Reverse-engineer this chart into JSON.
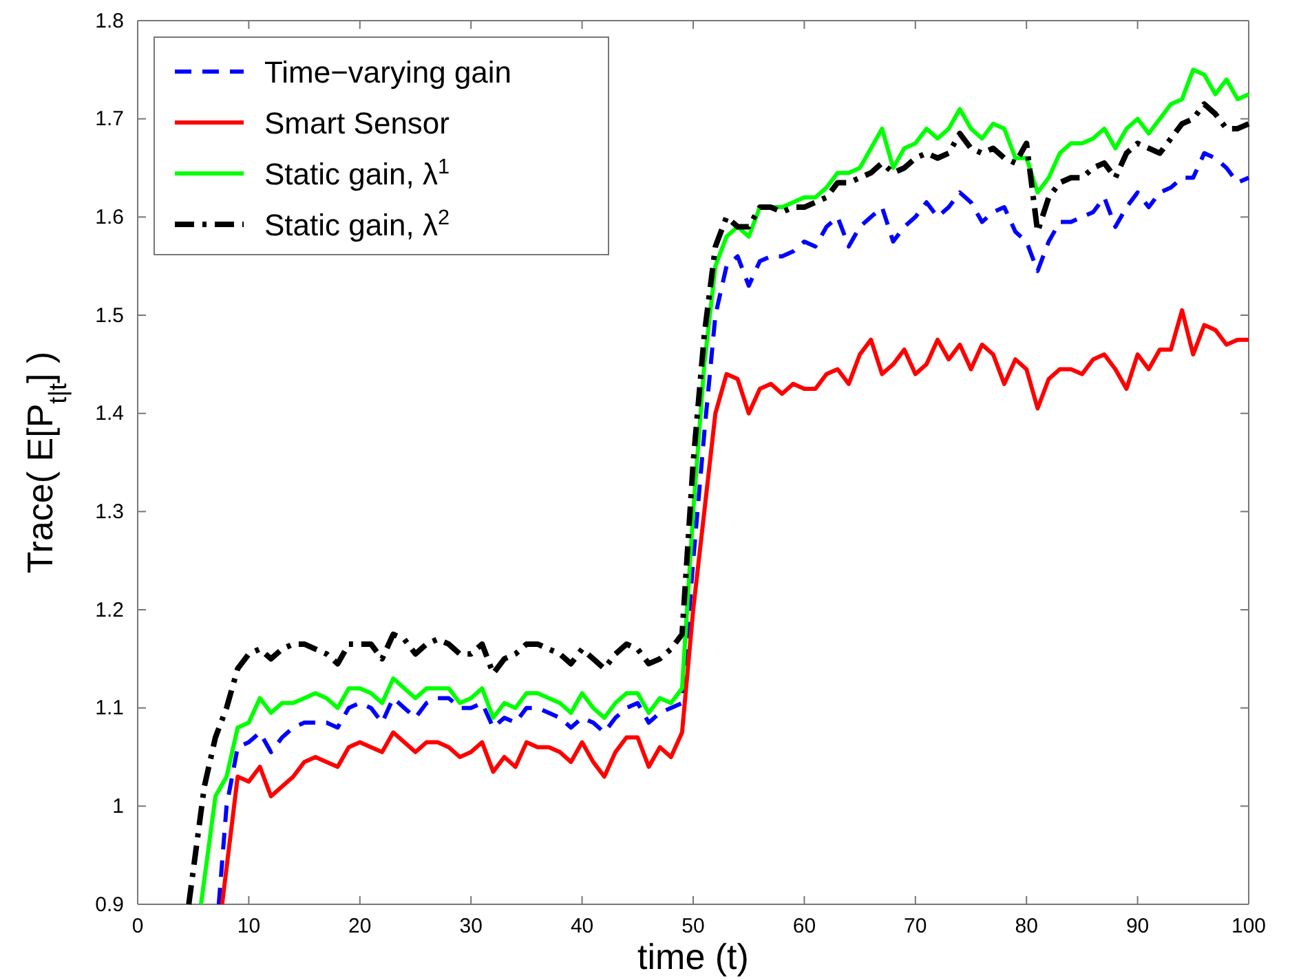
{
  "chart_data": {
    "type": "line",
    "xlabel": "time (t)",
    "ylabel": "Trace( E[P$_{t|t}$] )",
    "xlim": [
      0,
      100
    ],
    "xticks": [
      0,
      10,
      20,
      30,
      40,
      50,
      60,
      70,
      80,
      90,
      100
    ],
    "ylim": [
      0.9,
      1.8
    ],
    "yticks": [
      0.9,
      1,
      1.1,
      1.2,
      1.3,
      1.4,
      1.5,
      1.6,
      1.7,
      1.8
    ],
    "legend": "top left",
    "grid": false,
    "series": [
      {
        "name": "Time−varying gain",
        "color": "#0000ff",
        "line_style": "dashed",
        "x": [
          7.3,
          8,
          9,
          10,
          11,
          12,
          13,
          14,
          15,
          16,
          17,
          18,
          19,
          20,
          21,
          22,
          23,
          24,
          25,
          26,
          27,
          28,
          29,
          30,
          31,
          32,
          33,
          34,
          35,
          36,
          37,
          38,
          39,
          40,
          41,
          42,
          43,
          44,
          45,
          46,
          47,
          48,
          49,
          50,
          51,
          52,
          53,
          54,
          55,
          56,
          57,
          58,
          59,
          60,
          61,
          62,
          63,
          64,
          65,
          66,
          67,
          68,
          69,
          70,
          71,
          72,
          73,
          74,
          75,
          76,
          77,
          78,
          79,
          80,
          81,
          82,
          83,
          84,
          85,
          86,
          87,
          88,
          89,
          90,
          91,
          92,
          93,
          94,
          95,
          96,
          97,
          98,
          99,
          100
        ],
        "values": [
          0.9,
          1.0,
          1.06,
          1.065,
          1.075,
          1.055,
          1.07,
          1.08,
          1.085,
          1.085,
          1.085,
          1.08,
          1.1,
          1.105,
          1.1,
          1.085,
          1.11,
          1.1,
          1.09,
          1.105,
          1.11,
          1.11,
          1.1,
          1.1,
          1.105,
          1.08,
          1.09,
          1.085,
          1.1,
          1.1,
          1.095,
          1.09,
          1.08,
          1.09,
          1.085,
          1.075,
          1.09,
          1.1,
          1.105,
          1.085,
          1.095,
          1.1,
          1.105,
          1.25,
          1.38,
          1.5,
          1.55,
          1.56,
          1.53,
          1.555,
          1.56,
          1.56,
          1.565,
          1.575,
          1.57,
          1.59,
          1.6,
          1.57,
          1.59,
          1.6,
          1.61,
          1.575,
          1.59,
          1.6,
          1.615,
          1.6,
          1.61,
          1.625,
          1.615,
          1.595,
          1.605,
          1.61,
          1.585,
          1.575,
          1.545,
          1.575,
          1.595,
          1.595,
          1.6,
          1.605,
          1.62,
          1.59,
          1.61,
          1.625,
          1.61,
          1.625,
          1.63,
          1.64,
          1.64,
          1.665,
          1.66,
          1.65,
          1.635,
          1.64
        ]
      },
      {
        "name": "Smart Sensor",
        "color": "#ff0000",
        "line_style": "solid",
        "x": [
          7.6,
          9,
          10,
          11,
          12,
          13,
          14,
          15,
          16,
          17,
          18,
          19,
          20,
          21,
          22,
          23,
          24,
          25,
          26,
          27,
          28,
          29,
          30,
          31,
          32,
          33,
          34,
          35,
          36,
          37,
          38,
          39,
          40,
          41,
          42,
          43,
          44,
          45,
          46,
          47,
          48,
          49,
          50,
          51,
          52,
          53,
          54,
          55,
          56,
          57,
          58,
          59,
          60,
          61,
          62,
          63,
          64,
          65,
          66,
          67,
          68,
          69,
          70,
          71,
          72,
          73,
          74,
          75,
          76,
          77,
          78,
          79,
          80,
          81,
          82,
          83,
          84,
          85,
          86,
          87,
          88,
          89,
          90,
          91,
          92,
          93,
          94,
          95,
          96,
          97,
          98,
          99,
          100
        ],
        "values": [
          0.9,
          1.03,
          1.025,
          1.04,
          1.01,
          1.02,
          1.03,
          1.045,
          1.05,
          1.045,
          1.04,
          1.06,
          1.065,
          1.06,
          1.055,
          1.075,
          1.065,
          1.055,
          1.065,
          1.065,
          1.06,
          1.05,
          1.055,
          1.065,
          1.035,
          1.05,
          1.04,
          1.065,
          1.06,
          1.06,
          1.055,
          1.045,
          1.065,
          1.045,
          1.03,
          1.055,
          1.07,
          1.07,
          1.04,
          1.06,
          1.05,
          1.075,
          1.2,
          1.3,
          1.4,
          1.44,
          1.435,
          1.4,
          1.425,
          1.43,
          1.42,
          1.43,
          1.425,
          1.425,
          1.44,
          1.445,
          1.43,
          1.46,
          1.475,
          1.44,
          1.45,
          1.465,
          1.44,
          1.45,
          1.475,
          1.455,
          1.47,
          1.445,
          1.47,
          1.46,
          1.43,
          1.455,
          1.445,
          1.405,
          1.435,
          1.445,
          1.445,
          1.44,
          1.455,
          1.46,
          1.445,
          1.425,
          1.46,
          1.445,
          1.465,
          1.465,
          1.505,
          1.46,
          1.49,
          1.485,
          1.47,
          1.475,
          1.475
        ]
      },
      {
        "name": "Static gain, λ$^{1}$",
        "color": "#00ff00",
        "line_style": "solid",
        "x": [
          5.7,
          7,
          8,
          9,
          10,
          11,
          12,
          13,
          14,
          15,
          16,
          17,
          18,
          19,
          20,
          21,
          22,
          23,
          24,
          25,
          26,
          27,
          28,
          29,
          30,
          31,
          32,
          33,
          34,
          35,
          36,
          37,
          38,
          39,
          40,
          41,
          42,
          43,
          44,
          45,
          46,
          47,
          48,
          49,
          50,
          51,
          52,
          53,
          54,
          55,
          56,
          57,
          58,
          59,
          60,
          61,
          62,
          63,
          64,
          65,
          66,
          67,
          68,
          69,
          70,
          71,
          72,
          73,
          74,
          75,
          76,
          77,
          78,
          79,
          80,
          81,
          82,
          83,
          84,
          85,
          86,
          87,
          88,
          89,
          90,
          91,
          92,
          93,
          94,
          95,
          96,
          97,
          98,
          99,
          100
        ],
        "values": [
          0.9,
          1.01,
          1.03,
          1.08,
          1.085,
          1.11,
          1.095,
          1.105,
          1.105,
          1.11,
          1.115,
          1.11,
          1.1,
          1.12,
          1.12,
          1.115,
          1.105,
          1.13,
          1.12,
          1.11,
          1.12,
          1.12,
          1.12,
          1.105,
          1.11,
          1.12,
          1.09,
          1.105,
          1.1,
          1.115,
          1.115,
          1.11,
          1.105,
          1.095,
          1.115,
          1.1,
          1.09,
          1.105,
          1.115,
          1.115,
          1.095,
          1.11,
          1.105,
          1.12,
          1.3,
          1.45,
          1.55,
          1.58,
          1.59,
          1.58,
          1.61,
          1.61,
          1.61,
          1.615,
          1.62,
          1.62,
          1.63,
          1.645,
          1.645,
          1.65,
          1.67,
          1.69,
          1.65,
          1.67,
          1.675,
          1.69,
          1.68,
          1.69,
          1.71,
          1.69,
          1.68,
          1.695,
          1.69,
          1.66,
          1.66,
          1.625,
          1.64,
          1.665,
          1.675,
          1.675,
          1.68,
          1.69,
          1.67,
          1.69,
          1.7,
          1.685,
          1.7,
          1.715,
          1.72,
          1.75,
          1.745,
          1.725,
          1.74,
          1.72,
          1.725
        ]
      },
      {
        "name": "Static gain, λ$^{2}$",
        "color": "#000000",
        "line_style": "dashdot",
        "x": [
          4.6,
          6,
          7,
          8,
          9,
          10,
          11,
          12,
          13,
          14,
          15,
          16,
          17,
          18,
          19,
          20,
          21,
          22,
          23,
          24,
          25,
          26,
          27,
          28,
          29,
          30,
          31,
          32,
          33,
          34,
          35,
          36,
          37,
          38,
          39,
          40,
          41,
          42,
          43,
          44,
          45,
          46,
          47,
          48,
          49,
          50,
          51,
          52,
          53,
          54,
          55,
          56,
          57,
          58,
          59,
          60,
          61,
          62,
          63,
          64,
          65,
          66,
          67,
          68,
          69,
          70,
          71,
          72,
          73,
          74,
          75,
          76,
          77,
          78,
          79,
          80,
          81,
          82,
          83,
          84,
          85,
          86,
          87,
          88,
          89,
          90,
          91,
          92,
          93,
          94,
          95,
          96,
          97,
          98,
          99,
          100
        ],
        "values": [
          0.9,
          1.02,
          1.07,
          1.1,
          1.14,
          1.155,
          1.16,
          1.15,
          1.16,
          1.165,
          1.165,
          1.16,
          1.155,
          1.145,
          1.165,
          1.165,
          1.165,
          1.15,
          1.175,
          1.17,
          1.155,
          1.165,
          1.17,
          1.165,
          1.155,
          1.155,
          1.165,
          1.135,
          1.15,
          1.155,
          1.165,
          1.165,
          1.16,
          1.155,
          1.145,
          1.16,
          1.15,
          1.14,
          1.155,
          1.165,
          1.16,
          1.145,
          1.15,
          1.16,
          1.175,
          1.35,
          1.48,
          1.57,
          1.6,
          1.59,
          1.59,
          1.61,
          1.61,
          1.605,
          1.61,
          1.61,
          1.615,
          1.62,
          1.635,
          1.635,
          1.64,
          1.645,
          1.655,
          1.645,
          1.65,
          1.66,
          1.665,
          1.66,
          1.665,
          1.685,
          1.67,
          1.665,
          1.67,
          1.66,
          1.655,
          1.675,
          1.585,
          1.62,
          1.635,
          1.64,
          1.64,
          1.65,
          1.655,
          1.64,
          1.665,
          1.675,
          1.67,
          1.665,
          1.68,
          1.695,
          1.7,
          1.715,
          1.705,
          1.69,
          1.69,
          1.695
        ]
      }
    ]
  }
}
